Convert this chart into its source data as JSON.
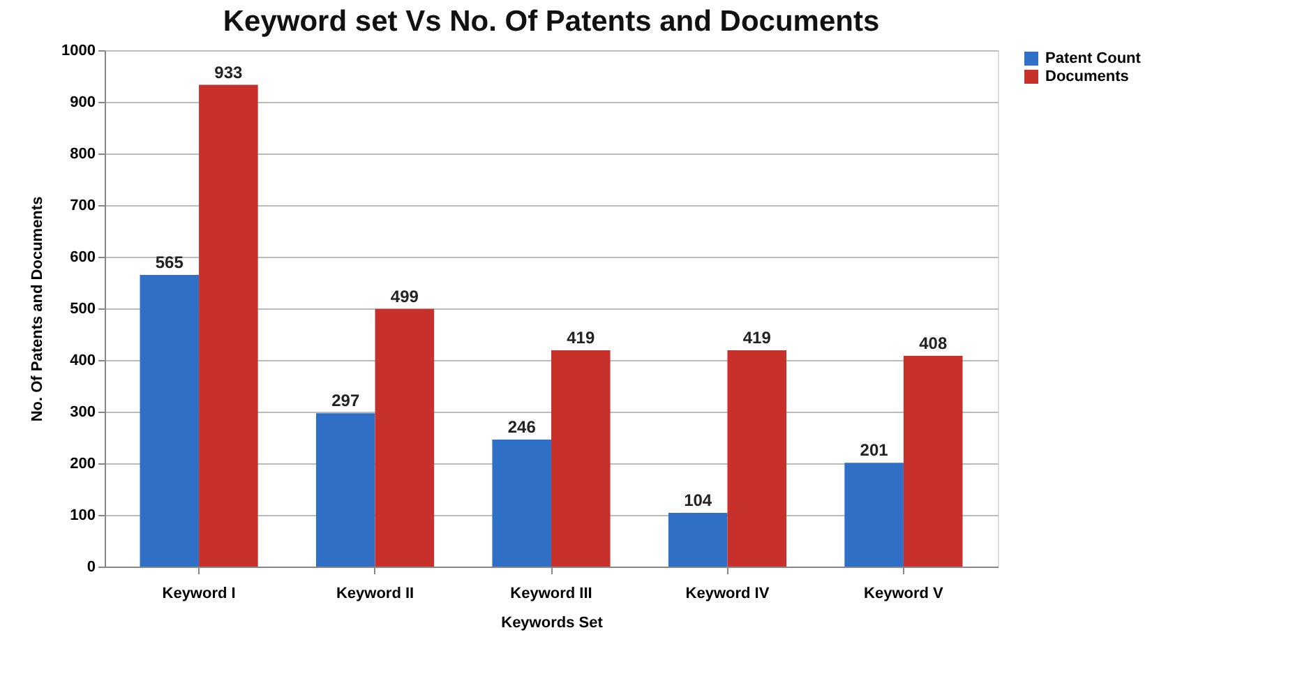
{
  "chart_data": {
    "type": "bar",
    "title": "Keyword set Vs No. Of Patents and Documents",
    "xlabel": "Keywords Set",
    "ylabel": "No. Of Patents and Documents",
    "categories": [
      "Keyword I",
      "Keyword II",
      "Keyword III",
      "Keyword IV",
      "Keyword V"
    ],
    "series": [
      {
        "name": "Patent Count",
        "color": "#2f6fc6",
        "values": [
          565,
          297,
          246,
          104,
          201
        ]
      },
      {
        "name": "Documents",
        "color": "#c8302c",
        "values": [
          933,
          499,
          419,
          419,
          408
        ]
      }
    ],
    "ylim": [
      0,
      1000
    ],
    "yticks": [
      0,
      100,
      200,
      300,
      400,
      500,
      600,
      700,
      800,
      900,
      1000
    ],
    "grid": "y",
    "legend": "right",
    "data_labels": true
  }
}
